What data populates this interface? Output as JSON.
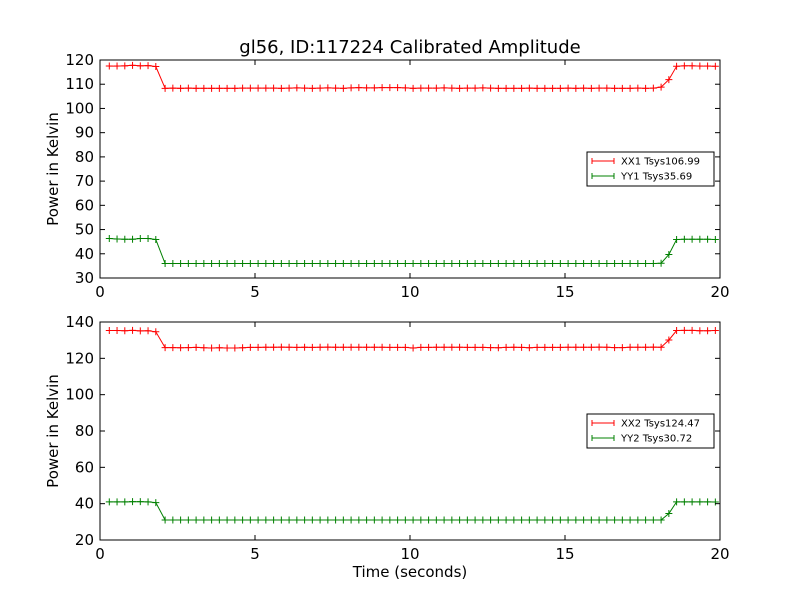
{
  "title": "gl56, ID:117224 Calibrated Amplitude",
  "chart_data": [
    {
      "type": "line",
      "xlabel": "",
      "ylabel": "Power in Kelvin",
      "xlim": [
        0,
        20
      ],
      "ylim": [
        30,
        120
      ],
      "xticks": [
        0,
        5,
        10,
        15,
        20
      ],
      "yticks": [
        30,
        40,
        50,
        60,
        70,
        80,
        90,
        100,
        110,
        120
      ],
      "grid": false,
      "legend_position": "center-right",
      "series": [
        {
          "name": "XX1 Tsys106.99",
          "color": "#ff0000",
          "marker": "plus",
          "x": [
            0.3,
            0.55,
            0.8,
            1.05,
            1.3,
            1.55,
            1.8,
            2.1,
            2.35,
            2.6,
            2.85,
            3.1,
            3.35,
            3.6,
            3.85,
            4.1,
            4.35,
            4.6,
            4.85,
            5.1,
            5.35,
            5.6,
            5.85,
            6.1,
            6.35,
            6.6,
            6.85,
            7.1,
            7.35,
            7.6,
            7.85,
            8.1,
            8.35,
            8.6,
            8.85,
            9.1,
            9.35,
            9.6,
            9.85,
            10.1,
            10.35,
            10.6,
            10.85,
            11.1,
            11.35,
            11.6,
            11.85,
            12.1,
            12.35,
            12.6,
            12.85,
            13.1,
            13.35,
            13.6,
            13.85,
            14.1,
            14.35,
            14.6,
            14.85,
            15.1,
            15.35,
            15.6,
            15.85,
            16.1,
            16.35,
            16.6,
            16.85,
            17.1,
            17.35,
            17.6,
            17.85,
            18.1,
            18.35,
            18.6,
            18.85,
            19.1,
            19.35,
            19.6,
            19.85
          ],
          "y": [
            117.5,
            117.5,
            117.6,
            117.8,
            117.6,
            117.7,
            117.3,
            108.3,
            108.4,
            108.3,
            108.4,
            108.3,
            108.3,
            108.3,
            108.3,
            108.3,
            108.3,
            108.4,
            108.4,
            108.4,
            108.4,
            108.4,
            108.3,
            108.4,
            108.5,
            108.4,
            108.3,
            108.4,
            108.5,
            108.4,
            108.3,
            108.5,
            108.6,
            108.5,
            108.5,
            108.6,
            108.6,
            108.6,
            108.5,
            108.3,
            108.4,
            108.4,
            108.4,
            108.5,
            108.4,
            108.3,
            108.4,
            108.4,
            108.5,
            108.4,
            108.3,
            108.3,
            108.3,
            108.3,
            108.4,
            108.3,
            108.3,
            108.3,
            108.3,
            108.4,
            108.3,
            108.4,
            108.3,
            108.4,
            108.4,
            108.3,
            108.3,
            108.3,
            108.4,
            108.3,
            108.4,
            108.8,
            111.9,
            117.4,
            117.6,
            117.6,
            117.5,
            117.5,
            117.4
          ]
        },
        {
          "name": "YY1 Tsys35.69",
          "color": "#008000",
          "marker": "plus",
          "x": [
            0.3,
            0.55,
            0.8,
            1.05,
            1.3,
            1.55,
            1.8,
            2.1,
            2.35,
            2.6,
            2.85,
            3.1,
            3.35,
            3.6,
            3.85,
            4.1,
            4.35,
            4.6,
            4.85,
            5.1,
            5.35,
            5.6,
            5.85,
            6.1,
            6.35,
            6.6,
            6.85,
            7.1,
            7.35,
            7.6,
            7.85,
            8.1,
            8.35,
            8.6,
            8.85,
            9.1,
            9.35,
            9.6,
            9.85,
            10.1,
            10.35,
            10.6,
            10.85,
            11.1,
            11.35,
            11.6,
            11.85,
            12.1,
            12.35,
            12.6,
            12.85,
            13.1,
            13.35,
            13.6,
            13.85,
            14.1,
            14.35,
            14.6,
            14.85,
            15.1,
            15.35,
            15.6,
            15.85,
            16.1,
            16.35,
            16.6,
            16.85,
            17.1,
            17.35,
            17.6,
            17.85,
            18.1,
            18.35,
            18.6,
            18.85,
            19.1,
            19.35,
            19.6,
            19.85
          ],
          "y": [
            46.3,
            46.1,
            46.0,
            46.0,
            46.3,
            46.3,
            45.9,
            36.0,
            36.0,
            36.0,
            36.0,
            36.0,
            36.0,
            36.0,
            36.0,
            36.0,
            36.0,
            36.0,
            36.0,
            36.0,
            36.0,
            36.0,
            36.0,
            36.0,
            36.0,
            36.0,
            36.0,
            36.0,
            36.0,
            36.0,
            36.0,
            36.0,
            36.0,
            36.0,
            36.0,
            36.0,
            36.0,
            36.0,
            36.0,
            36.0,
            36.0,
            36.0,
            36.0,
            36.0,
            36.0,
            36.0,
            36.0,
            36.0,
            36.0,
            36.0,
            36.0,
            36.0,
            36.0,
            36.0,
            36.0,
            36.0,
            36.0,
            36.0,
            36.0,
            36.0,
            36.0,
            36.0,
            36.0,
            36.0,
            36.0,
            36.0,
            36.0,
            36.0,
            36.0,
            36.0,
            36.0,
            36.1,
            39.7,
            45.9,
            46.0,
            46.0,
            46.0,
            46.0,
            45.9
          ]
        }
      ]
    },
    {
      "type": "line",
      "xlabel": "Time (seconds)",
      "ylabel": "Power in Kelvin",
      "xlim": [
        0,
        20
      ],
      "ylim": [
        20,
        140
      ],
      "xticks": [
        0,
        5,
        10,
        15,
        20
      ],
      "yticks": [
        20,
        40,
        60,
        80,
        100,
        120,
        140
      ],
      "grid": false,
      "legend_position": "center-right",
      "series": [
        {
          "name": "XX2 Tsys124.47",
          "color": "#ff0000",
          "marker": "plus",
          "x": [
            0.3,
            0.55,
            0.8,
            1.05,
            1.3,
            1.55,
            1.8,
            2.1,
            2.35,
            2.6,
            2.85,
            3.1,
            3.35,
            3.6,
            3.85,
            4.1,
            4.35,
            4.6,
            4.85,
            5.1,
            5.35,
            5.6,
            5.85,
            6.1,
            6.35,
            6.6,
            6.85,
            7.1,
            7.35,
            7.6,
            7.85,
            8.1,
            8.35,
            8.6,
            8.85,
            9.1,
            9.35,
            9.6,
            9.85,
            10.1,
            10.35,
            10.6,
            10.85,
            11.1,
            11.35,
            11.6,
            11.85,
            12.1,
            12.35,
            12.6,
            12.85,
            13.1,
            13.35,
            13.6,
            13.85,
            14.1,
            14.35,
            14.6,
            14.85,
            15.1,
            15.35,
            15.6,
            15.85,
            16.1,
            16.35,
            16.6,
            16.85,
            17.1,
            17.35,
            17.6,
            17.85,
            18.1,
            18.35,
            18.6,
            18.85,
            19.1,
            19.35,
            19.6,
            19.85
          ],
          "y": [
            135.3,
            135.3,
            135.2,
            135.4,
            135.1,
            135.2,
            134.6,
            125.9,
            125.9,
            125.8,
            125.9,
            126.0,
            125.8,
            125.7,
            125.8,
            125.7,
            125.7,
            125.8,
            126.0,
            126.0,
            126.1,
            126.1,
            126.2,
            126.1,
            126.0,
            126.1,
            126.0,
            126.1,
            126.2,
            126.1,
            126.1,
            126.1,
            126.1,
            126.1,
            126.1,
            126.1,
            126.0,
            126.0,
            126.0,
            125.7,
            126.0,
            126.0,
            126.1,
            126.1,
            126.1,
            126.1,
            126.0,
            126.0,
            126.0,
            125.9,
            125.8,
            126.0,
            126.1,
            126.0,
            125.8,
            126.0,
            126.0,
            126.0,
            126.0,
            126.1,
            126.1,
            126.1,
            126.1,
            126.2,
            126.1,
            125.9,
            125.9,
            126.1,
            126.1,
            126.1,
            126.2,
            126.1,
            130.1,
            135.3,
            135.4,
            135.4,
            135.2,
            135.2,
            135.3
          ]
        },
        {
          "name": "YY2 Tsys30.72",
          "color": "#008000",
          "marker": "plus",
          "x": [
            0.3,
            0.55,
            0.8,
            1.05,
            1.3,
            1.55,
            1.8,
            2.1,
            2.35,
            2.6,
            2.85,
            3.1,
            3.35,
            3.6,
            3.85,
            4.1,
            4.35,
            4.6,
            4.85,
            5.1,
            5.35,
            5.6,
            5.85,
            6.1,
            6.35,
            6.6,
            6.85,
            7.1,
            7.35,
            7.6,
            7.85,
            8.1,
            8.35,
            8.6,
            8.85,
            9.1,
            9.35,
            9.6,
            9.85,
            10.1,
            10.35,
            10.6,
            10.85,
            11.1,
            11.35,
            11.6,
            11.85,
            12.1,
            12.35,
            12.6,
            12.85,
            13.1,
            13.35,
            13.6,
            13.85,
            14.1,
            14.35,
            14.6,
            14.85,
            15.1,
            15.35,
            15.6,
            15.85,
            16.1,
            16.35,
            16.6,
            16.85,
            17.1,
            17.35,
            17.6,
            17.85,
            18.1,
            18.35,
            18.6,
            18.85,
            19.1,
            19.35,
            19.6,
            19.85
          ],
          "y": [
            41.0,
            41.0,
            41.0,
            41.1,
            41.1,
            41.0,
            40.6,
            31.0,
            31.0,
            31.0,
            31.0,
            31.0,
            31.0,
            31.0,
            31.0,
            31.0,
            31.0,
            31.0,
            31.0,
            31.0,
            31.0,
            31.0,
            31.0,
            31.0,
            31.0,
            31.0,
            31.0,
            31.0,
            31.0,
            31.0,
            31.0,
            31.0,
            31.0,
            31.0,
            31.0,
            31.0,
            31.0,
            31.0,
            31.0,
            31.0,
            31.0,
            31.0,
            31.0,
            31.0,
            31.0,
            31.0,
            31.0,
            31.0,
            31.0,
            31.0,
            31.0,
            31.0,
            31.0,
            31.0,
            31.0,
            31.0,
            31.0,
            31.0,
            31.0,
            31.0,
            31.0,
            31.0,
            31.0,
            31.0,
            31.0,
            31.0,
            31.0,
            31.0,
            31.0,
            31.0,
            31.0,
            31.0,
            34.6,
            41.0,
            41.0,
            41.0,
            41.0,
            41.0,
            40.9
          ]
        }
      ]
    }
  ]
}
